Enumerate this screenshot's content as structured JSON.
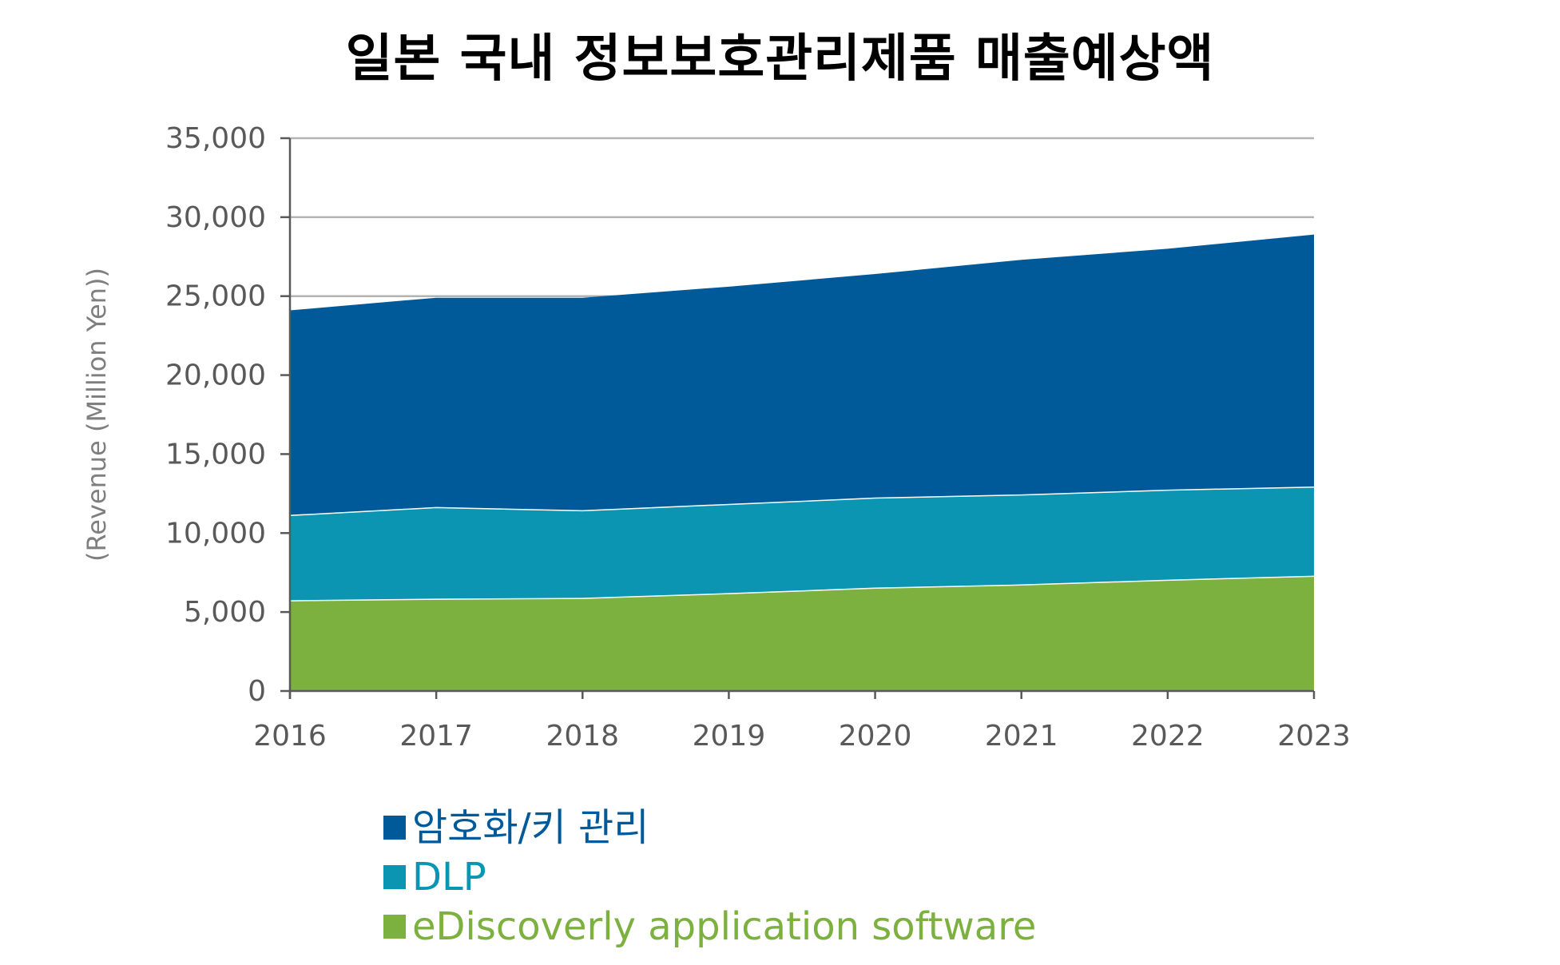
{
  "chart_data": {
    "type": "area",
    "stacked": true,
    "title": "일본 국내 정보보호관리제품 매출예상액",
    "xlabel": "",
    "ylabel": "(Revenue (Million Yen))",
    "ylim": [
      0,
      35000
    ],
    "yticks": [
      0,
      5000,
      10000,
      15000,
      20000,
      25000,
      30000,
      35000
    ],
    "ytick_labels": [
      "0",
      "5,000",
      "10,000",
      "15,000",
      "20,000",
      "25,000",
      "30,000",
      "35,000"
    ],
    "categories": [
      "2016",
      "2017",
      "2018",
      "2019",
      "2020",
      "2021",
      "2022",
      "2023"
    ],
    "grid": true,
    "legend_position": "bottom",
    "series": [
      {
        "name": "eDiscoverly application software",
        "color": "#7cb03f",
        "values": [
          5750,
          5850,
          5900,
          6200,
          6550,
          6750,
          7050,
          7300
        ]
      },
      {
        "name": "DLP",
        "color": "#0b95b2",
        "values": [
          5400,
          5800,
          5550,
          5650,
          5700,
          5700,
          5700,
          5650
        ]
      },
      {
        "name": "암호화/키 관리",
        "color": "#005a9a",
        "values": [
          12950,
          13250,
          13450,
          13750,
          14150,
          14850,
          15250,
          15950
        ]
      }
    ]
  },
  "legend": [
    {
      "label": "암호화/키 관리",
      "color": "#005a9a"
    },
    {
      "label": "DLP",
      "color": "#0b95b2"
    },
    {
      "label": "eDiscoverly application software",
      "color": "#7cb03f"
    }
  ]
}
